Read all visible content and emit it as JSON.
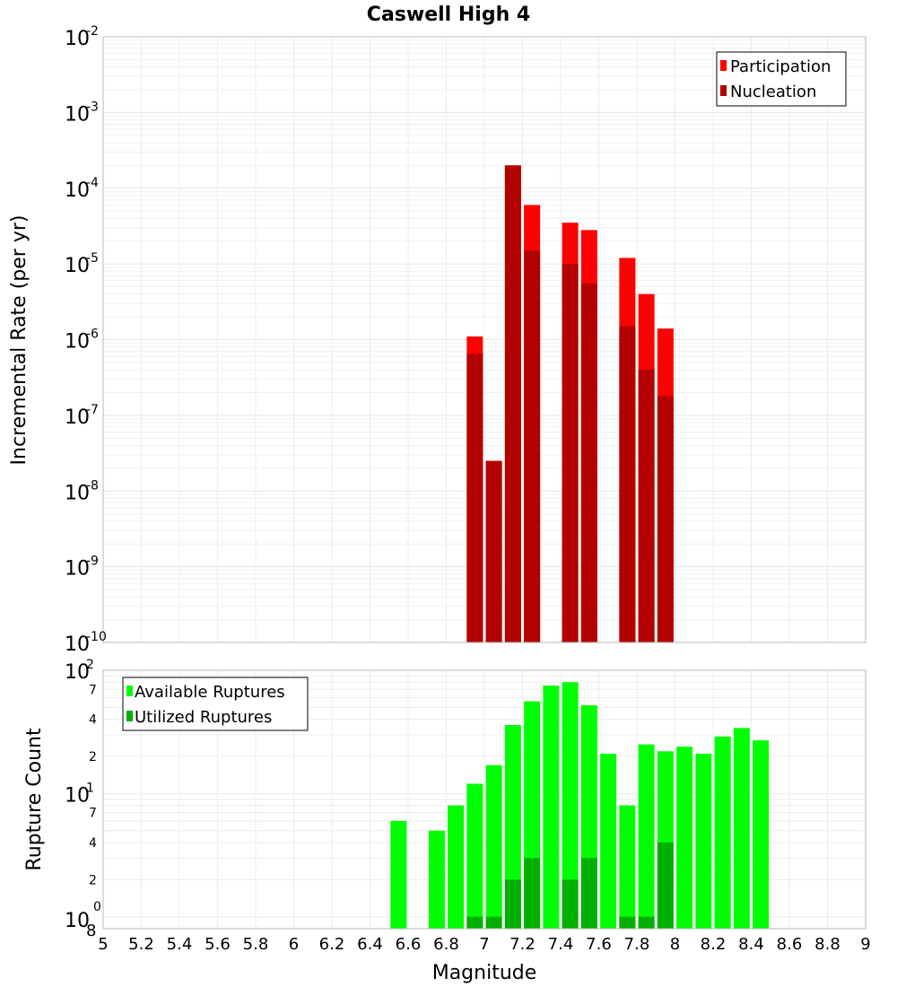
{
  "chart_data": [
    {
      "type": "bar",
      "title": "Caswell High 4",
      "xlabel": "",
      "ylabel": "Incremental Rate (per yr)",
      "yscale": "log",
      "ylim": [
        1e-10,
        0.01
      ],
      "xlim": [
        5,
        9
      ],
      "grid": true,
      "legend_position": "top-right",
      "series": [
        {
          "name": "Participation",
          "color": "#ff0000",
          "x": [
            6.95,
            7.05,
            7.15,
            7.25,
            7.45,
            7.55,
            7.75,
            7.85,
            7.95
          ],
          "values": [
            1.1e-06,
            2.5e-08,
            0.0002,
            6e-05,
            3.5e-05,
            2.8e-05,
            1.2e-05,
            4e-06,
            1.4e-06
          ]
        },
        {
          "name": "Nucleation",
          "color": "#b30000",
          "x": [
            6.95,
            7.05,
            7.15,
            7.25,
            7.45,
            7.55,
            7.75,
            7.85,
            7.95
          ],
          "values": [
            6.5e-07,
            2.5e-08,
            0.0002,
            1.5e-05,
            1e-05,
            5.5e-06,
            1.5e-06,
            4e-07,
            1.8e-07
          ]
        }
      ],
      "y_tick_labels": [
        {
          "base": "10",
          "exp": "-2"
        },
        {
          "base": "10",
          "exp": "-3"
        },
        {
          "base": "10",
          "exp": "-4"
        },
        {
          "base": "10",
          "exp": "-5"
        },
        {
          "base": "10",
          "exp": "-6"
        },
        {
          "base": "10",
          "exp": "-7"
        },
        {
          "base": "10",
          "exp": "-8"
        },
        {
          "base": "10",
          "exp": "-9"
        },
        {
          "base": "10",
          "exp": "-10"
        }
      ]
    },
    {
      "type": "bar",
      "title": "",
      "xlabel": "Magnitude",
      "ylabel": "Rupture Count",
      "yscale": "log",
      "ylim": [
        0.8,
        100
      ],
      "xlim": [
        5,
        9
      ],
      "grid": true,
      "legend_position": "top-left",
      "x_tick_labels": [
        "5",
        "5.2",
        "5.4",
        "5.6",
        "5.8",
        "6",
        "6.2",
        "6.4",
        "6.6",
        "6.8",
        "7",
        "7.2",
        "7.4",
        "7.6",
        "7.8",
        "8",
        "8.2",
        "8.4",
        "8.6",
        "8.8",
        "9"
      ],
      "series": [
        {
          "name": "Available Ruptures",
          "color": "#00ff00",
          "x": [
            6.55,
            6.75,
            6.85,
            6.95,
            7.05,
            7.15,
            7.25,
            7.35,
            7.45,
            7.55,
            7.65,
            7.75,
            7.85,
            7.95,
            8.05,
            8.15,
            8.25,
            8.35,
            8.45
          ],
          "values": [
            6,
            5,
            8,
            12,
            17,
            36,
            56,
            75,
            80,
            52,
            21,
            8,
            25,
            22,
            24,
            21,
            29,
            34,
            27
          ]
        },
        {
          "name": "Utilized Ruptures",
          "color": "#00b000",
          "x": [
            6.95,
            7.05,
            7.15,
            7.25,
            7.45,
            7.55,
            7.75,
            7.85,
            7.95
          ],
          "values": [
            1,
            1,
            2,
            3,
            2,
            3,
            1,
            1,
            4
          ]
        }
      ],
      "y_tick_labels": {
        "top": {
          "base": "10",
          "exp": "2"
        },
        "mid": {
          "base": "10",
          "exp": "1"
        },
        "bottom": {
          "base": "10",
          "exp": "0"
        },
        "bottom_extra": "8",
        "minor": [
          "7",
          "4",
          "2",
          "7",
          "4",
          "2"
        ]
      }
    }
  ]
}
